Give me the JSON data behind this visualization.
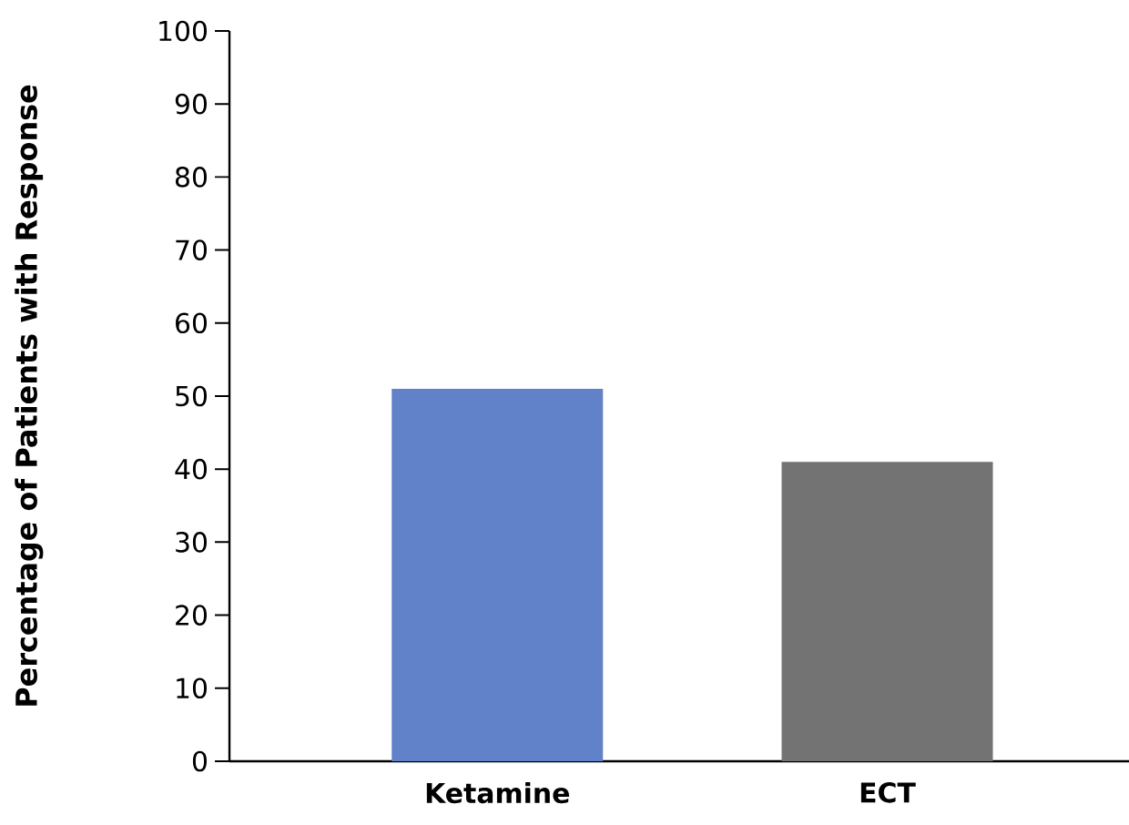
{
  "chart_data": {
    "type": "bar",
    "ylabel": "Percentage of Patients with Response",
    "categories": [
      "Ketamine",
      "ECT"
    ],
    "values": [
      51,
      41
    ],
    "colors": [
      "#6182c8",
      "#737373"
    ],
    "ylim": [
      0,
      100
    ],
    "yticks": [
      0,
      10,
      20,
      30,
      40,
      50,
      60,
      70,
      80,
      90,
      100
    ],
    "grid": false
  }
}
